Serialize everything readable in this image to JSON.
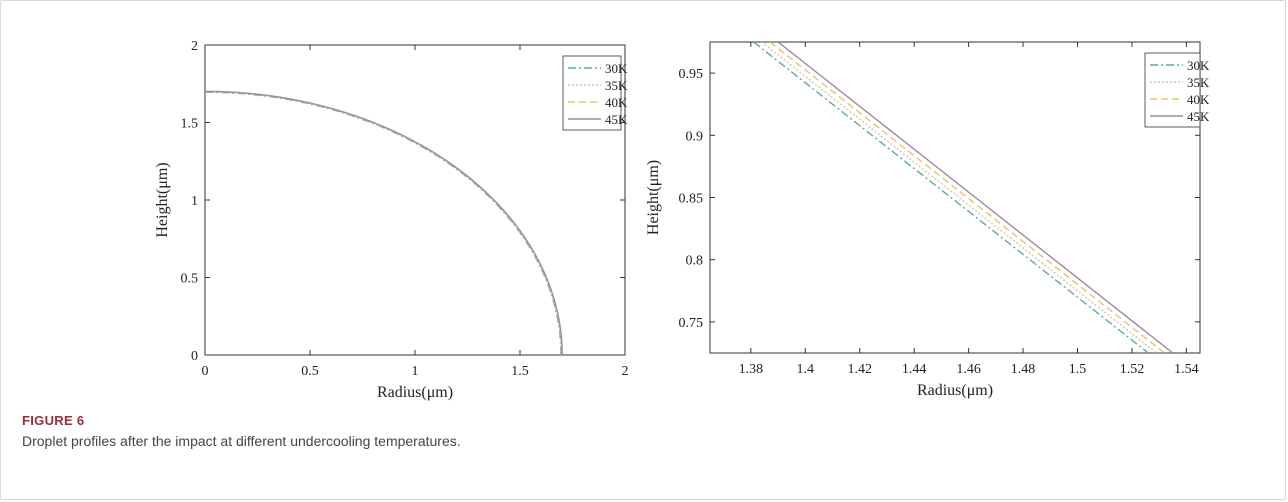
{
  "chart_data": [
    {
      "type": "line",
      "xlabel": "Radius(μm)",
      "ylabel": "Height(μm)",
      "xlim": [
        0,
        2
      ],
      "ylim": [
        0,
        2
      ],
      "xticks": [
        "0",
        "0.5",
        "1",
        "1.5",
        "2"
      ],
      "yticks": [
        "0",
        "0.5",
        "1",
        "1.5",
        "2"
      ],
      "legend_position": "top-right",
      "series": [
        {
          "name": "30K",
          "color": "#5fa9a6",
          "dash": "8,3,2,3",
          "radius": 1.695
        },
        {
          "name": "35K",
          "color": "#d9c7a3",
          "dash": "2,2",
          "radius": 1.697
        },
        {
          "name": "40K",
          "color": "#e3c56a",
          "dash": "7,4",
          "radius": 1.699
        },
        {
          "name": "45K",
          "color": "#9c8aa0",
          "dash": "",
          "radius": 1.701
        }
      ]
    },
    {
      "type": "line",
      "xlabel": "Radius(μm)",
      "ylabel": "Height(μm)",
      "xlim": [
        1.365,
        1.545
      ],
      "ylim": [
        0.725,
        0.975
      ],
      "xticks": [
        "1.38",
        "1.4",
        "1.42",
        "1.44",
        "1.46",
        "1.48",
        "1.5",
        "1.52",
        "1.54"
      ],
      "yticks": [
        "0.75",
        "0.8",
        "0.85",
        "0.9",
        "0.95"
      ],
      "legend_position": "top-right",
      "series": [
        {
          "name": "30K",
          "color": "#5fa9a6",
          "dash": "8,3,2,3",
          "x": [
            1.381,
            1.526
          ],
          "y": [
            0.975,
            0.725
          ]
        },
        {
          "name": "35K",
          "color": "#d9c7a3",
          "dash": "2,2",
          "x": [
            1.384,
            1.529
          ],
          "y": [
            0.975,
            0.725
          ]
        },
        {
          "name": "40K",
          "color": "#e3c56a",
          "dash": "7,4",
          "x": [
            1.387,
            1.532
          ],
          "y": [
            0.975,
            0.725
          ]
        },
        {
          "name": "45K",
          "color": "#9c8aa0",
          "dash": "",
          "x": [
            1.39,
            1.535
          ],
          "y": [
            0.975,
            0.725
          ]
        }
      ]
    }
  ],
  "caption": {
    "label": "FIGURE 6",
    "text": "Droplet profiles after the impact at different undercooling temperatures."
  }
}
